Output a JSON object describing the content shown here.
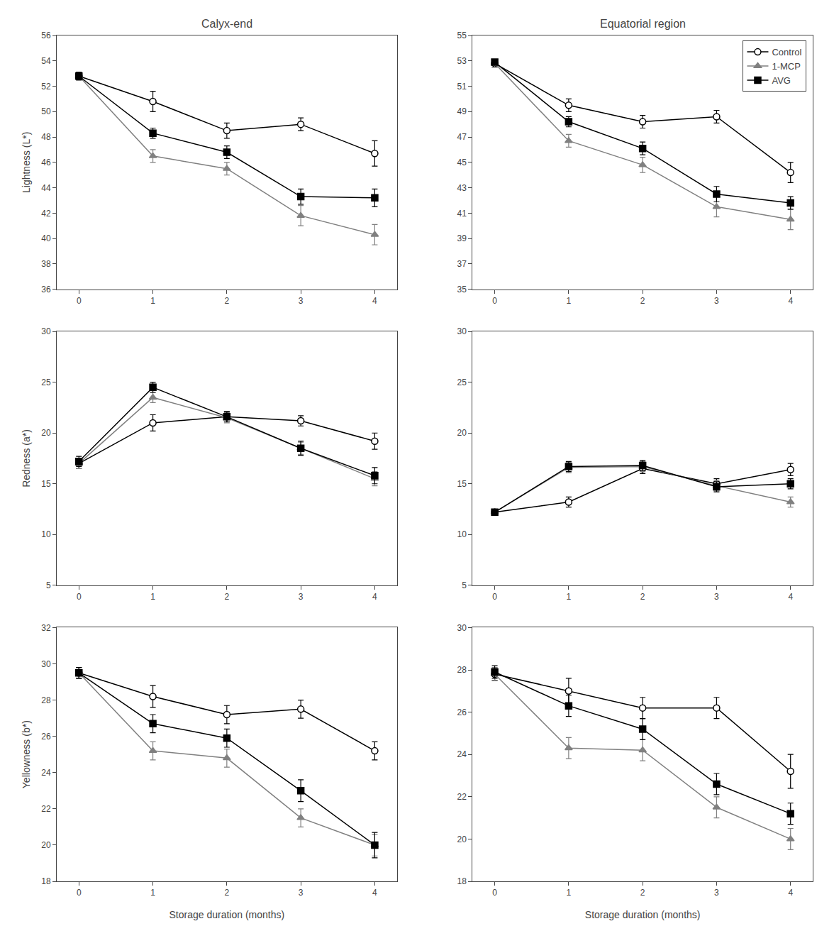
{
  "chart_data": [
    {
      "type": "line",
      "title": "Calyx-end",
      "ylabel": "Lightness (L*)",
      "x": [
        0,
        1,
        2,
        3,
        4
      ],
      "xlim": [
        -0.3,
        4.3
      ],
      "xticks": [
        0,
        1,
        2,
        3,
        4
      ],
      "ylim": [
        36,
        56
      ],
      "yticks": [
        36,
        38,
        40,
        42,
        44,
        46,
        48,
        50,
        52,
        54,
        56
      ],
      "grid": false,
      "series": [
        {
          "name": "Control",
          "color": "black",
          "marker": "circle-open",
          "values": [
            52.8,
            50.8,
            48.5,
            49.0,
            46.7
          ],
          "errors": [
            0.3,
            0.8,
            0.6,
            0.5,
            1.0
          ]
        },
        {
          "name": "1-MCP",
          "color": "gray",
          "marker": "triangle-up",
          "values": [
            52.8,
            46.5,
            45.5,
            41.8,
            40.3
          ],
          "errors": [
            0.3,
            0.5,
            0.5,
            0.8,
            0.8
          ]
        },
        {
          "name": "AVG",
          "color": "black",
          "marker": "square",
          "values": [
            52.8,
            48.3,
            46.8,
            43.3,
            43.2
          ],
          "errors": [
            0.3,
            0.4,
            0.5,
            0.6,
            0.7
          ]
        }
      ]
    },
    {
      "type": "line",
      "title": "Equatorial region",
      "legend": "upper right",
      "x": [
        0,
        1,
        2,
        3,
        4
      ],
      "xlim": [
        -0.3,
        4.3
      ],
      "xticks": [
        0,
        1,
        2,
        3,
        4
      ],
      "ylim": [
        35,
        55
      ],
      "yticks": [
        35,
        37,
        39,
        41,
        43,
        45,
        47,
        49,
        51,
        53,
        55
      ],
      "grid": false,
      "series": [
        {
          "name": "Control",
          "color": "black",
          "marker": "circle-open",
          "values": [
            52.8,
            49.5,
            48.2,
            48.6,
            44.2
          ],
          "errors": [
            0.3,
            0.5,
            0.5,
            0.5,
            0.8
          ]
        },
        {
          "name": "1-MCP",
          "color": "gray",
          "marker": "triangle-up",
          "values": [
            52.8,
            46.7,
            44.8,
            41.5,
            40.5
          ],
          "errors": [
            0.3,
            0.5,
            0.6,
            0.8,
            0.8
          ]
        },
        {
          "name": "AVG",
          "color": "black",
          "marker": "square",
          "values": [
            52.9,
            48.2,
            46.1,
            42.5,
            41.8
          ],
          "errors": [
            0.2,
            0.4,
            0.5,
            0.6,
            0.5
          ]
        }
      ]
    },
    {
      "type": "line",
      "ylabel": "Redness (a*)",
      "x": [
        0,
        1,
        2,
        3,
        4
      ],
      "xlim": [
        -0.3,
        4.3
      ],
      "xticks": [
        0,
        1,
        2,
        3,
        4
      ],
      "ylim": [
        5,
        30
      ],
      "yticks": [
        5,
        10,
        15,
        20,
        25,
        30
      ],
      "grid": false,
      "series": [
        {
          "name": "Control",
          "color": "black",
          "marker": "circle-open",
          "values": [
            17.0,
            21.0,
            21.6,
            21.2,
            19.2
          ],
          "errors": [
            0.5,
            0.8,
            0.5,
            0.5,
            0.8
          ]
        },
        {
          "name": "1-MCP",
          "color": "gray",
          "marker": "triangle-up",
          "values": [
            17.0,
            23.5,
            21.5,
            18.5,
            15.5
          ],
          "errors": [
            0.5,
            0.5,
            0.5,
            0.6,
            0.7
          ]
        },
        {
          "name": "AVG",
          "color": "black",
          "marker": "square",
          "values": [
            17.2,
            24.5,
            21.6,
            18.5,
            15.8
          ],
          "errors": [
            0.5,
            0.5,
            0.5,
            0.7,
            0.8
          ]
        }
      ]
    },
    {
      "type": "line",
      "x": [
        0,
        1,
        2,
        3,
        4
      ],
      "xlim": [
        -0.3,
        4.3
      ],
      "xticks": [
        0,
        1,
        2,
        3,
        4
      ],
      "ylim": [
        5,
        30
      ],
      "yticks": [
        5,
        10,
        15,
        20,
        25,
        30
      ],
      "grid": false,
      "series": [
        {
          "name": "Control",
          "color": "black",
          "marker": "circle-open",
          "values": [
            12.2,
            13.2,
            16.5,
            15.0,
            16.4
          ],
          "errors": [
            0.3,
            0.5,
            0.5,
            0.5,
            0.6
          ]
        },
        {
          "name": "1-MCP",
          "color": "gray",
          "marker": "triangle-up",
          "values": [
            12.2,
            16.6,
            16.7,
            14.8,
            13.2
          ],
          "errors": [
            0.3,
            0.5,
            0.5,
            0.5,
            0.5
          ]
        },
        {
          "name": "AVG",
          "color": "black",
          "marker": "square",
          "values": [
            12.2,
            16.7,
            16.8,
            14.7,
            15.0
          ],
          "errors": [
            0.3,
            0.5,
            0.5,
            0.5,
            0.5
          ]
        }
      ]
    },
    {
      "type": "line",
      "ylabel": "Yellowness (b*)",
      "xlabel": "Storage duration (months)",
      "x": [
        0,
        1,
        2,
        3,
        4
      ],
      "xlim": [
        -0.3,
        4.3
      ],
      "xticks": [
        0,
        1,
        2,
        3,
        4
      ],
      "ylim": [
        18,
        32
      ],
      "yticks": [
        18,
        20,
        22,
        24,
        26,
        28,
        30,
        32
      ],
      "grid": false,
      "series": [
        {
          "name": "Control",
          "color": "black",
          "marker": "circle-open",
          "values": [
            29.5,
            28.2,
            27.2,
            27.5,
            25.2
          ],
          "errors": [
            0.3,
            0.6,
            0.5,
            0.5,
            0.5
          ]
        },
        {
          "name": "1-MCP",
          "color": "gray",
          "marker": "triangle-up",
          "values": [
            29.5,
            25.2,
            24.8,
            21.5,
            20.0
          ],
          "errors": [
            0.3,
            0.5,
            0.5,
            0.5,
            0.6
          ]
        },
        {
          "name": "AVG",
          "color": "black",
          "marker": "square",
          "values": [
            29.5,
            26.7,
            25.9,
            23.0,
            20.0
          ],
          "errors": [
            0.3,
            0.5,
            0.5,
            0.6,
            0.7
          ]
        }
      ]
    },
    {
      "type": "line",
      "xlabel": "Storage duration (months)",
      "x": [
        0,
        1,
        2,
        3,
        4
      ],
      "xlim": [
        -0.3,
        4.3
      ],
      "xticks": [
        0,
        1,
        2,
        3,
        4
      ],
      "ylim": [
        18,
        30
      ],
      "yticks": [
        18,
        20,
        22,
        24,
        26,
        28,
        30
      ],
      "grid": false,
      "series": [
        {
          "name": "Control",
          "color": "black",
          "marker": "circle-open",
          "values": [
            27.8,
            27.0,
            26.2,
            26.2,
            23.2
          ],
          "errors": [
            0.3,
            0.6,
            0.5,
            0.5,
            0.8
          ]
        },
        {
          "name": "1-MCP",
          "color": "gray",
          "marker": "triangle-up",
          "values": [
            27.8,
            24.3,
            24.2,
            21.5,
            20.0
          ],
          "errors": [
            0.3,
            0.5,
            0.5,
            0.5,
            0.5
          ]
        },
        {
          "name": "AVG",
          "color": "black",
          "marker": "square",
          "values": [
            27.9,
            26.3,
            25.2,
            22.6,
            21.2
          ],
          "errors": [
            0.3,
            0.5,
            0.5,
            0.5,
            0.5
          ]
        }
      ]
    }
  ]
}
